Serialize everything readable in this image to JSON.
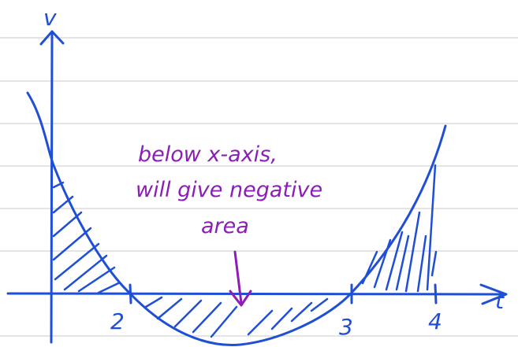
{
  "axes": {
    "y_label": "v",
    "x_label": "t",
    "ticks": [
      "2",
      "3",
      "4"
    ]
  },
  "annotation": {
    "lines": [
      "below x-axis,",
      "will give negative",
      "area"
    ]
  }
}
